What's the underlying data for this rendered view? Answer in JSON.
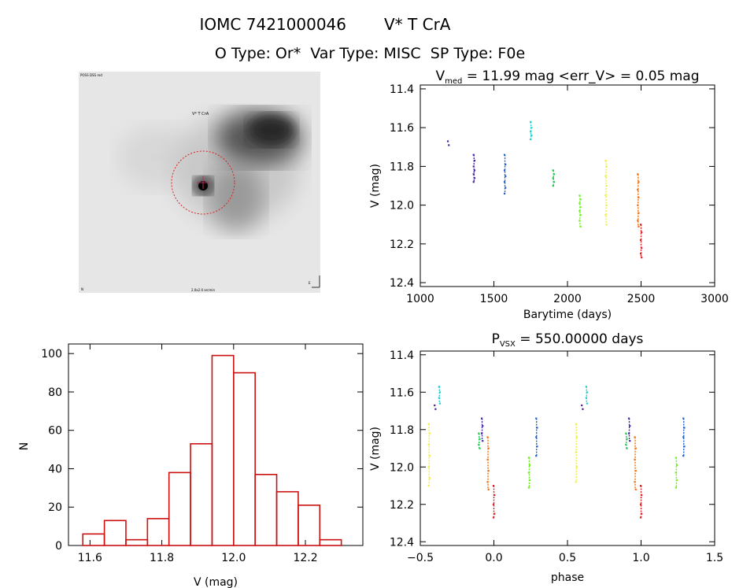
{
  "header": {
    "title_id": "IOMC 7421000046",
    "title_name": "V* T CrA",
    "subtitle": "O Type: Or*  Var Type: MISC  SP Type: F0e"
  },
  "thumbnail": {
    "corner_tl": "POSS DSS red",
    "marker_label": "V* T CrA",
    "bottom_center": "2.0x2.0 arcmin",
    "bottom_left": "N",
    "bottom_right": "E"
  },
  "chart_data": [
    {
      "id": "lightcurve",
      "type": "scatter",
      "title": "V",
      "title_sub": "med",
      "title_rest": " = 11.99 mag <err_V> = 0.05 mag",
      "xlabel": "Barytime (days)",
      "ylabel": "V (mag)",
      "xlim": [
        1000,
        3000
      ],
      "ylim": [
        12.42,
        11.38
      ],
      "xticks": [
        "1000",
        "1500",
        "2000",
        "2500",
        "3000"
      ],
      "yticks": [
        "11.4",
        "11.6",
        "11.8",
        "12.0",
        "12.2",
        "12.4"
      ],
      "groups": [
        {
          "color": "#4a1f8a",
          "x": 1190,
          "y": [
            11.67,
            11.69
          ]
        },
        {
          "color": "#4422aa",
          "x": 1365,
          "y": [
            11.74,
            11.77,
            11.8,
            11.82,
            11.84,
            11.86,
            11.88
          ]
        },
        {
          "color": "#1e64d0",
          "x": 1575,
          "y": [
            11.74,
            11.79,
            11.82,
            11.85,
            11.88,
            11.91,
            11.94
          ]
        },
        {
          "color": "#1fd0d0",
          "x": 1752,
          "y": [
            11.57,
            11.6,
            11.62,
            11.64,
            11.66
          ]
        },
        {
          "color": "#20c850",
          "x": 1905,
          "y": [
            11.82,
            11.84,
            11.86,
            11.88,
            11.9
          ]
        },
        {
          "color": "#6cf020",
          "x": 2085,
          "y": [
            11.95,
            11.97,
            11.99,
            12.01,
            12.03,
            12.05,
            12.08,
            12.11
          ]
        },
        {
          "color": "#f0f040",
          "x": 2262,
          "y": [
            11.77,
            11.8,
            11.85,
            11.9,
            11.95,
            12.0,
            12.05,
            12.1
          ]
        },
        {
          "color": "#f07010",
          "x": 2480,
          "y": [
            11.84,
            11.88,
            11.92,
            11.96,
            12.0,
            12.04,
            12.08,
            12.11
          ]
        },
        {
          "color": "#e02020",
          "x": 2500,
          "y": [
            12.1,
            12.14,
            12.18,
            12.22,
            12.25,
            12.27
          ]
        }
      ]
    },
    {
      "id": "histogram",
      "type": "bar",
      "xlabel": "V (mag)",
      "ylabel": "N",
      "xlim": [
        11.54,
        12.36
      ],
      "ylim": [
        0,
        105
      ],
      "xticks": [
        "11.6",
        "11.8",
        "12.0",
        "12.2"
      ],
      "yticks": [
        "0",
        "20",
        "40",
        "60",
        "80",
        "100"
      ],
      "bin_edges": [
        11.58,
        11.64,
        11.7,
        11.76,
        11.82,
        11.88,
        11.94,
        12.0,
        12.06,
        12.12,
        12.18,
        12.24,
        12.3
      ],
      "values": [
        6,
        13,
        3,
        14,
        38,
        53,
        99,
        90,
        37,
        28,
        21,
        3
      ]
    },
    {
      "id": "phased",
      "type": "scatter",
      "title": "P",
      "title_sub": "VSX",
      "title_rest": " = 550.00000 days",
      "xlabel": "phase",
      "ylabel": "V (mag)",
      "xlim": [
        -0.5,
        1.5
      ],
      "ylim": [
        12.42,
        11.38
      ],
      "xticks": [
        "−0.5",
        "0.0",
        "0.5",
        "1.0",
        "1.5"
      ],
      "yticks": [
        "11.4",
        "11.6",
        "11.8",
        "12.0",
        "12.2",
        "12.4"
      ],
      "groups": [
        {
          "color": "#4a1f8a",
          "x": -0.4,
          "y": [
            11.67,
            11.69
          ]
        },
        {
          "color": "#1fd0d0",
          "x": -0.37,
          "y": [
            11.57,
            11.6,
            11.63,
            11.66
          ]
        },
        {
          "color": "#f0f040",
          "x": -0.44,
          "y": [
            11.77,
            11.82,
            11.88,
            11.94,
            12.0,
            12.06,
            12.1
          ]
        },
        {
          "color": "#20c850",
          "x": -0.1,
          "y": [
            11.82,
            11.85,
            11.88,
            11.9
          ]
        },
        {
          "color": "#4422aa",
          "x": -0.08,
          "y": [
            11.74,
            11.78,
            11.82,
            11.86
          ]
        },
        {
          "color": "#f07010",
          "x": -0.04,
          "y": [
            11.84,
            11.9,
            11.96,
            12.02,
            12.08,
            12.12
          ]
        },
        {
          "color": "#e02020",
          "x": 0.0,
          "y": [
            12.1,
            12.15,
            12.2,
            12.25,
            12.27
          ]
        },
        {
          "color": "#6cf020",
          "x": 0.24,
          "y": [
            11.95,
            11.99,
            12.03,
            12.07,
            12.11
          ]
        },
        {
          "color": "#1e64d0",
          "x": 0.29,
          "y": [
            11.74,
            11.79,
            11.84,
            11.89,
            11.94
          ]
        },
        {
          "color": "#f0f040",
          "x": 0.56,
          "y": [
            11.77,
            11.84,
            11.92,
            12.0,
            12.08
          ]
        },
        {
          "color": "#4a1f8a",
          "x": 0.6,
          "y": [
            11.67,
            11.69
          ]
        },
        {
          "color": "#1fd0d0",
          "x": 0.63,
          "y": [
            11.57,
            11.6,
            11.63,
            11.66
          ]
        },
        {
          "color": "#20c850",
          "x": 0.9,
          "y": [
            11.82,
            11.85,
            11.88,
            11.9
          ]
        },
        {
          "color": "#4422aa",
          "x": 0.92,
          "y": [
            11.74,
            11.78,
            11.82,
            11.86
          ]
        },
        {
          "color": "#f07010",
          "x": 0.96,
          "y": [
            11.84,
            11.9,
            11.96,
            12.02,
            12.08,
            12.12
          ]
        },
        {
          "color": "#e02020",
          "x": 1.0,
          "y": [
            12.1,
            12.15,
            12.2,
            12.25,
            12.27
          ]
        },
        {
          "color": "#6cf020",
          "x": 1.24,
          "y": [
            11.95,
            11.99,
            12.03,
            12.07,
            12.11
          ]
        },
        {
          "color": "#1e64d0",
          "x": 1.29,
          "y": [
            11.74,
            11.79,
            11.84,
            11.89,
            11.94
          ]
        }
      ]
    }
  ],
  "colors": {
    "hist_bar": "#cc1111",
    "circle": "#dd2222"
  }
}
